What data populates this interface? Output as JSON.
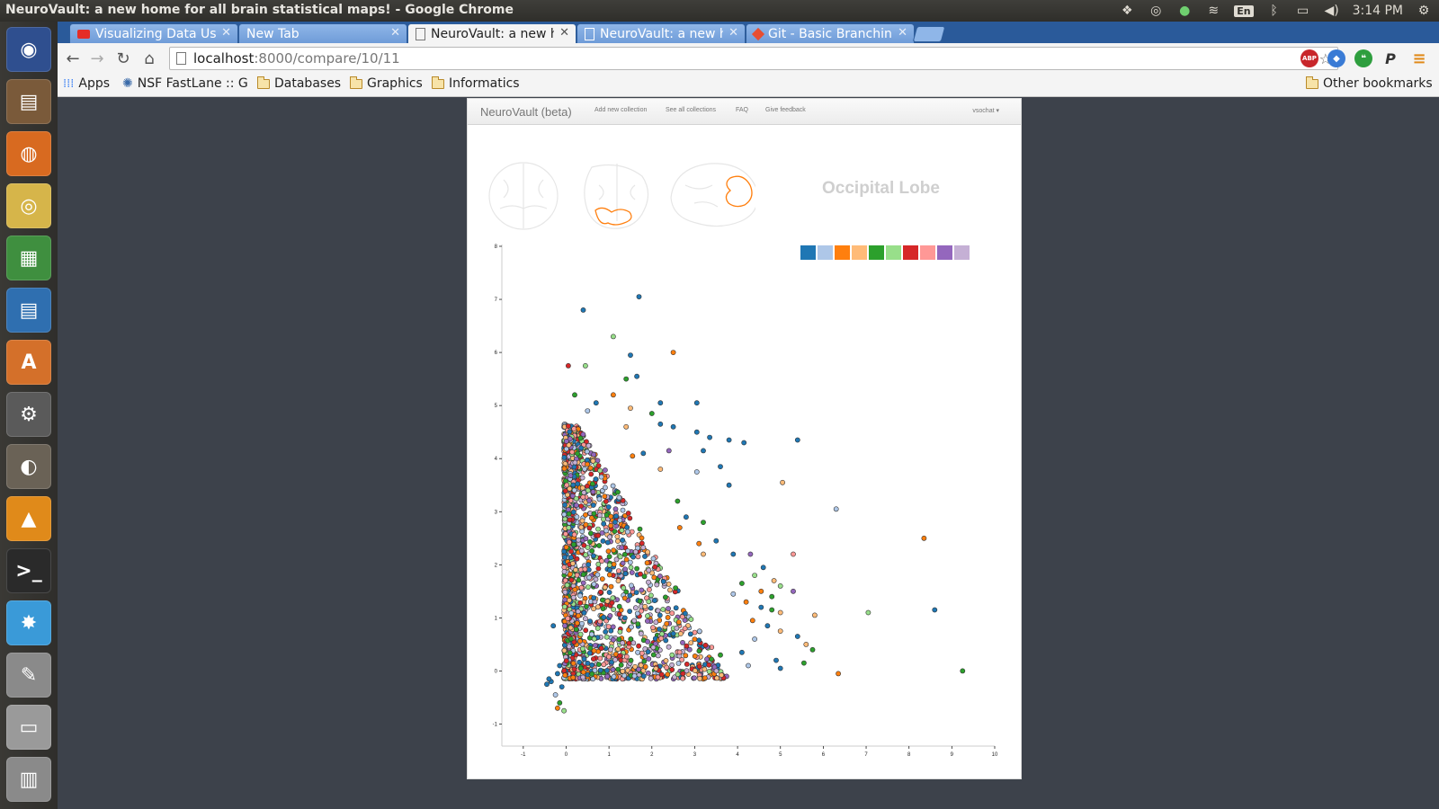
{
  "os": {
    "window_title": "NeuroVault: a new home for all brain statistical maps! - Google Chrome",
    "tray": {
      "language": "En",
      "clock": "3:14 PM"
    },
    "launcher": [
      {
        "name": "ubuntu-dash-icon",
        "color": "#2f4f8f",
        "glyph": "◉"
      },
      {
        "name": "files-icon",
        "color": "#7a5a3a",
        "glyph": "▤"
      },
      {
        "name": "firefox-icon",
        "color": "#d86a20",
        "glyph": "◍"
      },
      {
        "name": "chrome-icon",
        "color": "#d6b54a",
        "glyph": "◎"
      },
      {
        "name": "calc-spreadsheet-icon",
        "color": "#3f8f3f",
        "glyph": "▦"
      },
      {
        "name": "writer-document-icon",
        "color": "#2f6fb0",
        "glyph": "▤"
      },
      {
        "name": "software-center-icon",
        "color": "#d4702a",
        "glyph": "A"
      },
      {
        "name": "system-settings-icon",
        "color": "#5a5a5a",
        "glyph": "⚙"
      },
      {
        "name": "gimp-icon",
        "color": "#6a6256",
        "glyph": "◐"
      },
      {
        "name": "vlc-icon",
        "color": "#e08a1a",
        "glyph": "▲"
      },
      {
        "name": "terminal-icon",
        "color": "#2a2a2a",
        "glyph": ">_"
      },
      {
        "name": "splash-app-icon",
        "color": "#3a9ad8",
        "glyph": "✸"
      },
      {
        "name": "text-editor-icon",
        "color": "#8a8a8a",
        "glyph": "✎"
      },
      {
        "name": "disk-drive-icon",
        "color": "#9a9a9a",
        "glyph": "▭"
      },
      {
        "name": "trash-icon",
        "color": "#8a8a8a",
        "glyph": "▥"
      }
    ]
  },
  "browser": {
    "tabs": [
      {
        "label": "Visualizing Data Usi",
        "icon": "youtube-icon",
        "active": false
      },
      {
        "label": "New Tab",
        "icon": "",
        "active": false
      },
      {
        "label": "NeuroVault: a new h",
        "icon": "page-icon",
        "active": true
      },
      {
        "label": "NeuroVault: a new h",
        "icon": "page-icon",
        "active": false
      },
      {
        "label": "Git - Basic Branching",
        "icon": "git-icon",
        "active": false
      }
    ],
    "url": {
      "host": "localhost",
      "rest": ":8000/compare/10/11"
    },
    "bookmarks": {
      "apps": "Apps",
      "nsf": "NSF FastLane :: G",
      "databases": "Databases",
      "graphics": "Graphics",
      "informatics": "Informatics",
      "other": "Other bookmarks"
    },
    "extensions": {
      "abp": "ABP",
      "pushbullet": "P"
    }
  },
  "page": {
    "nav": {
      "brand": "NeuroVault (beta)",
      "links": [
        "Add new collection",
        "See all collections",
        "FAQ",
        "Give feedback"
      ],
      "user": "vsochat ▾"
    },
    "region_title": "Occipital Lobe",
    "legend_colors": [
      "#1f77b4",
      "#aec7e8",
      "#ff7f0e",
      "#ffbb78",
      "#2ca02c",
      "#98df8a",
      "#d62728",
      "#ff9896",
      "#9467bd",
      "#c5b0d5"
    ]
  },
  "chart_data": {
    "type": "scatter",
    "title": "",
    "xlabel": "",
    "ylabel": "",
    "xlim": [
      -1.5,
      10
    ],
    "ylim": [
      -1.5,
      8
    ],
    "xticks": [
      -1,
      0,
      1,
      2,
      3,
      4,
      5,
      6,
      7,
      8,
      9,
      10
    ],
    "yticks": [
      -1,
      0,
      1,
      2,
      3,
      4,
      5,
      6,
      7,
      8
    ],
    "legend_position": "top-right",
    "series_colors": [
      "#1f77b4",
      "#aec7e8",
      "#ff7f0e",
      "#ffbb78",
      "#2ca02c",
      "#98df8a",
      "#d62728",
      "#ff9896",
      "#9467bd",
      "#c5b0d5"
    ],
    "points": [
      {
        "x": 1.7,
        "y": 7.05,
        "c": 0
      },
      {
        "x": 0.4,
        "y": 6.8,
        "c": 0
      },
      {
        "x": 1.1,
        "y": 6.3,
        "c": 5
      },
      {
        "x": 2.5,
        "y": 6.0,
        "c": 2
      },
      {
        "x": 1.5,
        "y": 5.95,
        "c": 0
      },
      {
        "x": 0.05,
        "y": 5.75,
        "c": 6
      },
      {
        "x": 0.45,
        "y": 5.75,
        "c": 5
      },
      {
        "x": 1.65,
        "y": 5.55,
        "c": 0
      },
      {
        "x": 1.4,
        "y": 5.5,
        "c": 4
      },
      {
        "x": 0.2,
        "y": 5.2,
        "c": 4
      },
      {
        "x": 1.1,
        "y": 5.2,
        "c": 2
      },
      {
        "x": 0.7,
        "y": 5.05,
        "c": 0
      },
      {
        "x": 3.05,
        "y": 5.05,
        "c": 0
      },
      {
        "x": 2.2,
        "y": 5.05,
        "c": 0
      },
      {
        "x": 1.5,
        "y": 4.95,
        "c": 3
      },
      {
        "x": 2.0,
        "y": 4.85,
        "c": 4
      },
      {
        "x": 0.5,
        "y": 4.9,
        "c": 1
      },
      {
        "x": 2.2,
        "y": 4.65,
        "c": 0
      },
      {
        "x": 2.5,
        "y": 4.6,
        "c": 0
      },
      {
        "x": 1.4,
        "y": 4.6,
        "c": 3
      },
      {
        "x": 3.05,
        "y": 4.5,
        "c": 0
      },
      {
        "x": 3.35,
        "y": 4.4,
        "c": 0
      },
      {
        "x": 3.8,
        "y": 4.35,
        "c": 0
      },
      {
        "x": 4.15,
        "y": 4.3,
        "c": 0
      },
      {
        "x": 5.4,
        "y": 4.35,
        "c": 0
      },
      {
        "x": 3.2,
        "y": 4.15,
        "c": 0
      },
      {
        "x": 2.4,
        "y": 4.15,
        "c": 8
      },
      {
        "x": 1.8,
        "y": 4.1,
        "c": 0
      },
      {
        "x": 1.55,
        "y": 4.05,
        "c": 2
      },
      {
        "x": 0.35,
        "y": 4.2,
        "c": 0
      },
      {
        "x": 3.6,
        "y": 3.85,
        "c": 0
      },
      {
        "x": 3.05,
        "y": 3.75,
        "c": 1
      },
      {
        "x": 2.2,
        "y": 3.8,
        "c": 3
      },
      {
        "x": 3.8,
        "y": 3.5,
        "c": 0
      },
      {
        "x": 5.05,
        "y": 3.55,
        "c": 3
      },
      {
        "x": 6.3,
        "y": 3.05,
        "c": 1
      },
      {
        "x": 2.6,
        "y": 3.2,
        "c": 4
      },
      {
        "x": 2.8,
        "y": 2.9,
        "c": 0
      },
      {
        "x": 3.2,
        "y": 2.8,
        "c": 4
      },
      {
        "x": 2.65,
        "y": 2.7,
        "c": 2
      },
      {
        "x": 8.35,
        "y": 2.5,
        "c": 2
      },
      {
        "x": 3.5,
        "y": 2.45,
        "c": 0
      },
      {
        "x": 3.1,
        "y": 2.4,
        "c": 2
      },
      {
        "x": 3.2,
        "y": 2.2,
        "c": 3
      },
      {
        "x": 3.9,
        "y": 2.2,
        "c": 0
      },
      {
        "x": 4.3,
        "y": 2.2,
        "c": 8
      },
      {
        "x": 5.3,
        "y": 2.2,
        "c": 7
      },
      {
        "x": 4.6,
        "y": 1.95,
        "c": 0
      },
      {
        "x": 4.4,
        "y": 1.8,
        "c": 5
      },
      {
        "x": 4.1,
        "y": 1.65,
        "c": 4
      },
      {
        "x": 4.85,
        "y": 1.7,
        "c": 3
      },
      {
        "x": 5.0,
        "y": 1.6,
        "c": 5
      },
      {
        "x": 5.3,
        "y": 1.5,
        "c": 8
      },
      {
        "x": 4.55,
        "y": 1.5,
        "c": 2
      },
      {
        "x": 3.9,
        "y": 1.45,
        "c": 1
      },
      {
        "x": 4.8,
        "y": 1.4,
        "c": 4
      },
      {
        "x": 4.2,
        "y": 1.3,
        "c": 2
      },
      {
        "x": 4.55,
        "y": 1.2,
        "c": 0
      },
      {
        "x": 4.8,
        "y": 1.15,
        "c": 4
      },
      {
        "x": 5.0,
        "y": 1.1,
        "c": 3
      },
      {
        "x": 5.8,
        "y": 1.05,
        "c": 3
      },
      {
        "x": 7.05,
        "y": 1.1,
        "c": 5
      },
      {
        "x": 8.6,
        "y": 1.15,
        "c": 0
      },
      {
        "x": 4.35,
        "y": 0.95,
        "c": 2
      },
      {
        "x": 4.7,
        "y": 0.85,
        "c": 0
      },
      {
        "x": 5.0,
        "y": 0.75,
        "c": 3
      },
      {
        "x": 5.4,
        "y": 0.65,
        "c": 0
      },
      {
        "x": 4.4,
        "y": 0.6,
        "c": 1
      },
      {
        "x": 5.6,
        "y": 0.5,
        "c": 3
      },
      {
        "x": 5.75,
        "y": 0.4,
        "c": 4
      },
      {
        "x": 4.1,
        "y": 0.35,
        "c": 0
      },
      {
        "x": 4.9,
        "y": 0.2,
        "c": 0
      },
      {
        "x": 5.55,
        "y": 0.15,
        "c": 4
      },
      {
        "x": 5.0,
        "y": 0.05,
        "c": 0
      },
      {
        "x": 6.35,
        "y": -0.05,
        "c": 2
      },
      {
        "x": 9.25,
        "y": 0.0,
        "c": 4
      },
      {
        "x": 4.25,
        "y": 0.1,
        "c": 1
      },
      {
        "x": 3.6,
        "y": 0.3,
        "c": 4
      },
      {
        "x": -0.3,
        "y": 0.85,
        "c": 0
      },
      {
        "x": -0.35,
        "y": -0.2,
        "c": 0
      },
      {
        "x": -0.25,
        "y": -0.45,
        "c": 1
      },
      {
        "x": -0.15,
        "y": -0.6,
        "c": 4
      },
      {
        "x": -0.2,
        "y": -0.7,
        "c": 2
      },
      {
        "x": -0.05,
        "y": -0.75,
        "c": 5
      },
      {
        "x": -0.4,
        "y": -0.15,
        "c": 0
      },
      {
        "x": -0.45,
        "y": -0.25,
        "c": 0
      },
      {
        "x": -0.2,
        "y": -0.05,
        "c": 0
      },
      {
        "x": -0.1,
        "y": -0.3,
        "c": 0
      },
      {
        "x": -0.15,
        "y": 0.1,
        "c": 0
      }
    ],
    "cluster": {
      "note": "dense cloud of points mostly in x 0-4, y -0.2-5, drawn by script from seeded generator",
      "count": 1700
    }
  }
}
